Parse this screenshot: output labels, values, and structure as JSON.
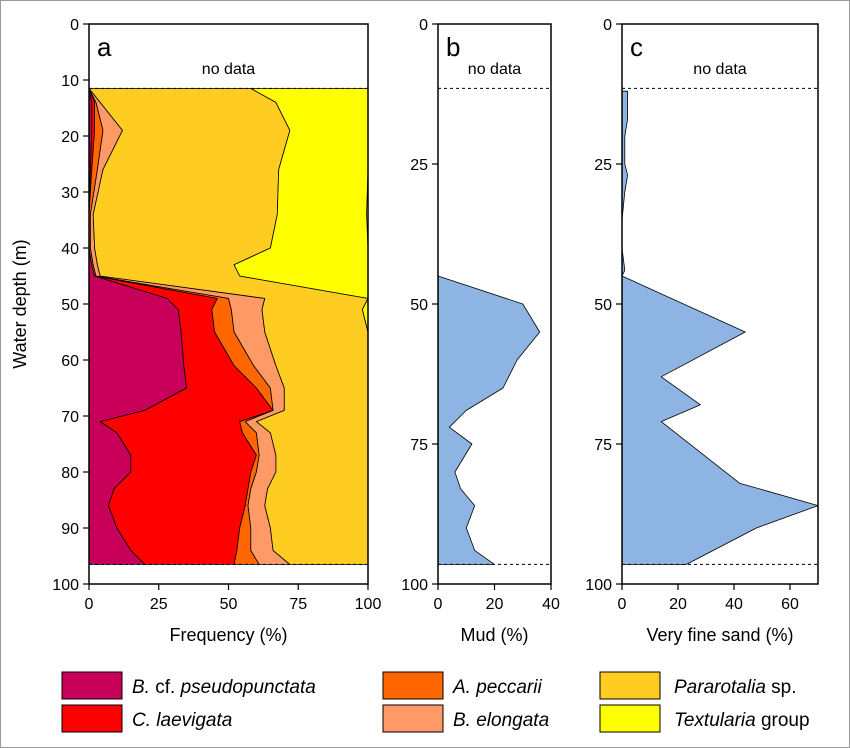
{
  "chart_data": [
    {
      "type": "area",
      "panel": "a",
      "no_data_label": "no data",
      "xlabel": "Frequency (%)",
      "ylabel": "Water depth (m)",
      "xlim": [
        0,
        100
      ],
      "ylim": [
        0,
        100
      ],
      "y_inverted": true,
      "xticks": [
        "0",
        "25",
        "50",
        "75",
        "100"
      ],
      "yticks": [
        "0",
        "10",
        "20",
        "30",
        "40",
        "50",
        "60",
        "70",
        "80",
        "90",
        "100"
      ],
      "no_data_lines": [
        11.5,
        96.5
      ],
      "stacked": true,
      "depth": [
        11.5,
        14,
        19,
        26,
        34,
        40,
        43,
        45,
        49,
        51,
        55,
        61,
        65,
        69,
        71,
        73,
        77,
        80,
        83,
        86,
        90,
        94,
        96.5
      ],
      "series": [
        {
          "name": "B. cf. pseudopunctata",
          "color": "#c8005a",
          "values": [
            0,
            1,
            1,
            0.5,
            0,
            0,
            1,
            2,
            28,
            32,
            33,
            34,
            35,
            20,
            4,
            10,
            15,
            15,
            9,
            7,
            10,
            15,
            20
          ]
        },
        {
          "name": "C. laevigata",
          "color": "#ff0000",
          "values": [
            0,
            1,
            1,
            0.5,
            0,
            0,
            0,
            0,
            18,
            12,
            12,
            18,
            25,
            46,
            50,
            45,
            45,
            43,
            48,
            49,
            44,
            38,
            32
          ]
        },
        {
          "name": "A. peccarii",
          "color": "#ff6600",
          "values": [
            0,
            0.5,
            3,
            2,
            0.5,
            0.5,
            0.5,
            0.5,
            4,
            7,
            7,
            7,
            5,
            0,
            2,
            5,
            1,
            2,
            1,
            1,
            4,
            5,
            9
          ]
        },
        {
          "name": "B. elongata",
          "color": "#ff9966",
          "values": [
            0,
            1.5,
            7,
            2,
            1,
            1.5,
            1.5,
            1.5,
            13,
            11,
            11,
            8,
            5,
            4,
            4,
            5,
            6,
            7,
            6,
            6,
            7,
            8,
            11
          ]
        },
        {
          "name": "Pararotalia sp.",
          "color": "#ffcc22",
          "values": [
            58,
            63,
            60,
            63,
            66,
            63,
            49,
            50,
            37,
            36,
            37,
            33,
            30,
            30,
            40,
            35,
            33,
            33,
            36,
            37,
            35,
            34,
            28
          ]
        },
        {
          "name": "Textularia group",
          "color": "#ffff00",
          "values": [
            42,
            33,
            28,
            32,
            32,
            35,
            48,
            46,
            0,
            2,
            0,
            0,
            0,
            0,
            0,
            0,
            0,
            0,
            0,
            0,
            0,
            0,
            0
          ]
        }
      ]
    },
    {
      "type": "area",
      "panel": "b",
      "no_data_label": "no data",
      "xlabel": "Mud (%)",
      "xlim": [
        0,
        40
      ],
      "ylim": [
        0,
        100
      ],
      "y_inverted": true,
      "xticks": [
        "0",
        "20",
        "40"
      ],
      "yticks": [
        "0",
        "25",
        "50",
        "75",
        "100"
      ],
      "no_data_lines": [
        11.5,
        96.5
      ],
      "color": "#8eb4e3",
      "depth": [
        45,
        50,
        55,
        60,
        65,
        69,
        72,
        75,
        80,
        83,
        86,
        90,
        94,
        96.5
      ],
      "values": [
        0,
        30,
        36,
        28,
        23,
        10,
        4,
        12,
        6,
        8,
        13,
        10,
        13,
        20
      ]
    },
    {
      "type": "area",
      "panel": "c",
      "no_data_label": "no data",
      "xlabel": "Very fine sand (%)",
      "xlim": [
        0,
        70
      ],
      "ylim": [
        0,
        100
      ],
      "y_inverted": true,
      "xticks": [
        "0",
        "20",
        "40",
        "60"
      ],
      "yticks": [
        "0",
        "25",
        "50",
        "75",
        "100"
      ],
      "no_data_lines": [
        11.5,
        96.5
      ],
      "color": "#8eb4e3",
      "depth": [
        12,
        17,
        20,
        25,
        27,
        30,
        35,
        40,
        44,
        45,
        55,
        63,
        68,
        71,
        82,
        86,
        90,
        96.5
      ],
      "values": [
        2,
        2,
        1,
        1,
        2,
        1,
        0,
        0,
        1,
        0,
        44,
        14,
        28,
        14,
        42,
        70,
        48,
        23
      ]
    }
  ]
}
